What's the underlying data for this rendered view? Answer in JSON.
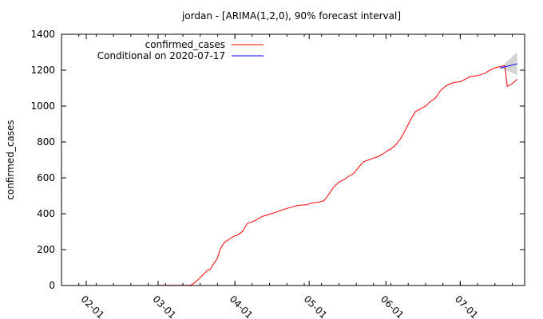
{
  "chart_data": {
    "type": "line",
    "title": "jordan -  [ARIMA(1,2,0), 90% forecast interval]",
    "ylabel": "confirmed_cases",
    "xlabel": "",
    "ylim": [
      0,
      1400
    ],
    "xlim": [
      "2020-01-22",
      "2020-07-27"
    ],
    "y_ticks": [
      0,
      200,
      400,
      600,
      800,
      1000,
      1200,
      1400
    ],
    "x_ticks": [
      {
        "date": "2020-02-01",
        "label": "02-01"
      },
      {
        "date": "2020-03-01",
        "label": "03-01"
      },
      {
        "date": "2020-04-01",
        "label": "04-01"
      },
      {
        "date": "2020-05-01",
        "label": "05-01"
      },
      {
        "date": "2020-06-01",
        "label": "06-01"
      },
      {
        "date": "2020-07-01",
        "label": "07-01"
      }
    ],
    "legend_position": "top-left",
    "grid": false,
    "series": [
      {
        "name": "confirmed_cases",
        "color": "#ff0000",
        "points": [
          [
            "2020-01-22",
            0
          ],
          [
            "2020-03-01",
            0
          ],
          [
            "2020-03-02",
            1
          ],
          [
            "2020-03-14",
            1
          ],
          [
            "2020-03-15",
            8
          ],
          [
            "2020-03-17",
            30
          ],
          [
            "2020-03-19",
            58
          ],
          [
            "2020-03-21",
            85
          ],
          [
            "2020-03-22",
            90
          ],
          [
            "2020-03-23",
            112
          ],
          [
            "2020-03-25",
            153
          ],
          [
            "2020-03-26",
            200
          ],
          [
            "2020-03-27",
            225
          ],
          [
            "2020-03-28",
            243
          ],
          [
            "2020-03-30",
            260
          ],
          [
            "2020-03-31",
            270
          ],
          [
            "2020-04-01",
            277
          ],
          [
            "2020-04-02",
            280
          ],
          [
            "2020-04-03",
            290
          ],
          [
            "2020-04-04",
            300
          ],
          [
            "2020-04-06",
            345
          ],
          [
            "2020-04-08",
            355
          ],
          [
            "2020-04-10",
            368
          ],
          [
            "2020-04-12",
            385
          ],
          [
            "2020-04-14",
            393
          ],
          [
            "2020-04-16",
            402
          ],
          [
            "2020-04-18",
            410
          ],
          [
            "2020-04-20",
            420
          ],
          [
            "2020-04-22",
            430
          ],
          [
            "2020-04-24",
            437
          ],
          [
            "2020-04-26",
            445
          ],
          [
            "2020-04-28",
            449
          ],
          [
            "2020-04-30",
            450
          ],
          [
            "2020-05-02",
            459
          ],
          [
            "2020-05-05",
            465
          ],
          [
            "2020-05-07",
            473
          ],
          [
            "2020-05-09",
            510
          ],
          [
            "2020-05-11",
            550
          ],
          [
            "2020-05-13",
            576
          ],
          [
            "2020-05-15",
            590
          ],
          [
            "2020-05-17",
            609
          ],
          [
            "2020-05-19",
            625
          ],
          [
            "2020-05-21",
            660
          ],
          [
            "2020-05-23",
            690
          ],
          [
            "2020-05-25",
            700
          ],
          [
            "2020-05-27",
            710
          ],
          [
            "2020-05-29",
            720
          ],
          [
            "2020-05-31",
            735
          ],
          [
            "2020-06-02",
            755
          ],
          [
            "2020-06-03",
            760
          ],
          [
            "2020-06-05",
            785
          ],
          [
            "2020-06-07",
            820
          ],
          [
            "2020-06-09",
            870
          ],
          [
            "2020-06-11",
            925
          ],
          [
            "2020-06-13",
            970
          ],
          [
            "2020-06-15",
            985
          ],
          [
            "2020-06-17",
            1000
          ],
          [
            "2020-06-19",
            1025
          ],
          [
            "2020-06-21",
            1045
          ],
          [
            "2020-06-23",
            1085
          ],
          [
            "2020-06-25",
            1110
          ],
          [
            "2020-06-27",
            1125
          ],
          [
            "2020-06-29",
            1133
          ],
          [
            "2020-07-01",
            1135
          ],
          [
            "2020-07-03",
            1150
          ],
          [
            "2020-07-05",
            1165
          ],
          [
            "2020-07-08",
            1170
          ],
          [
            "2020-07-11",
            1183
          ],
          [
            "2020-07-13",
            1200
          ],
          [
            "2020-07-15",
            1213
          ],
          [
            "2020-07-17",
            1220
          ],
          [
            "2020-07-19",
            1225
          ],
          [
            "2020-07-20",
            1110
          ],
          [
            "2020-07-22",
            1125
          ],
          [
            "2020-07-24",
            1150
          ]
        ]
      },
      {
        "name": "Conditional on 2020-07-17",
        "color": "#0000ff",
        "points": [
          [
            "2020-07-17",
            1212
          ],
          [
            "2020-07-19",
            1218
          ],
          [
            "2020-07-21",
            1225
          ],
          [
            "2020-07-23",
            1232
          ],
          [
            "2020-07-24",
            1236
          ]
        ],
        "interval_90": {
          "x": [
            "2020-07-17",
            "2020-07-19",
            "2020-07-21",
            "2020-07-23",
            "2020-07-24"
          ],
          "lower": [
            1212,
            1200,
            1190,
            1178,
            1172
          ],
          "upper": [
            1212,
            1237,
            1262,
            1287,
            1300
          ]
        }
      }
    ]
  }
}
